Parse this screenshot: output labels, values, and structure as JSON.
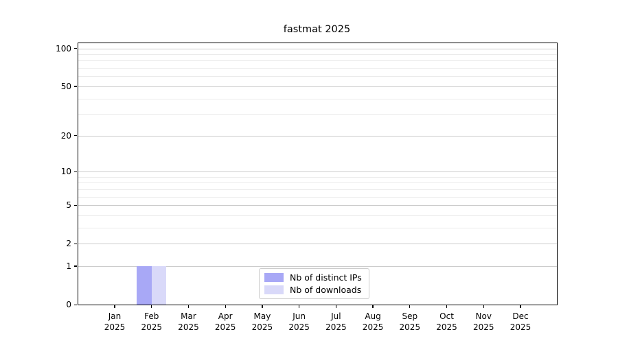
{
  "title": "fastmat 2025",
  "chart_data": {
    "type": "bar",
    "title": "fastmat 2025",
    "categories": [
      "Jan 2025",
      "Feb 2025",
      "Mar 2025",
      "Apr 2025",
      "May 2025",
      "Jun 2025",
      "Jul 2025",
      "Aug 2025",
      "Sep 2025",
      "Oct 2025",
      "Nov 2025",
      "Dec 2025"
    ],
    "series": [
      {
        "name": "Nb of distinct IPs",
        "color": "#a8a8f6",
        "values": [
          0,
          1,
          0,
          0,
          0,
          0,
          0,
          0,
          0,
          0,
          0,
          0
        ]
      },
      {
        "name": "Nb of downloads",
        "color": "#d9d9f9",
        "values": [
          0,
          1,
          0,
          0,
          0,
          0,
          0,
          0,
          0,
          0,
          0,
          0
        ]
      }
    ],
    "yscale": "log1p",
    "ylim": [
      0,
      110
    ],
    "yticks": [
      0,
      1,
      2,
      5,
      10,
      20,
      50,
      100
    ],
    "yticks_minor": [
      3,
      4,
      6,
      7,
      8,
      9,
      30,
      40,
      60,
      70,
      80,
      90
    ],
    "grid": "both",
    "legend_position": "lower-center"
  },
  "colors": {
    "background": "#ffffff",
    "axis": "#000000",
    "grid_major": "#cccccc",
    "grid_minor": "#ebebeb",
    "legend_border": "#cccccc"
  }
}
